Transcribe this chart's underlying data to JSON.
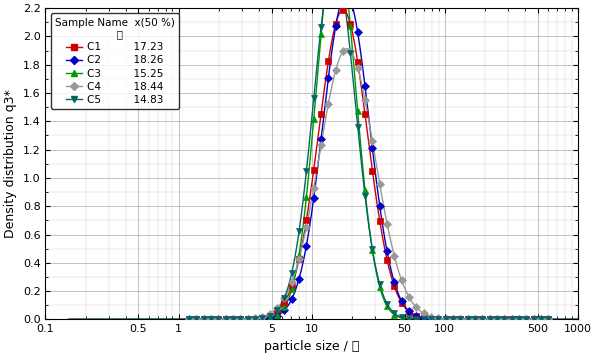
{
  "title": "",
  "xlabel": "particle size / 萑",
  "ylabel": "Density distribution q3*",
  "xlim": [
    0.1,
    1000
  ],
  "ylim": [
    0.0,
    2.2
  ],
  "yticks": [
    0.0,
    0.2,
    0.4,
    0.6,
    0.8,
    1.0,
    1.2,
    1.4,
    1.6,
    1.8,
    2.0,
    2.2
  ],
  "series": [
    {
      "name": "C1",
      "x50": 17.23,
      "color": "#cc0000",
      "marker": "s",
      "mu": 2.845,
      "sigma": 0.42
    },
    {
      "name": "C2",
      "x50": 18.26,
      "color": "#0000cc",
      "marker": "D",
      "mu": 2.9,
      "sigma": 0.4
    },
    {
      "name": "C3",
      "x50": 15.25,
      "color": "#009900",
      "marker": "^",
      "mu": 2.725,
      "sigma": 0.34
    },
    {
      "name": "C4",
      "x50": 18.44,
      "color": "#999999",
      "marker": "D",
      "mu": 2.915,
      "sigma": 0.48
    },
    {
      "name": "C5",
      "x50": 14.83,
      "color": "#006666",
      "marker": "v",
      "mu": 2.695,
      "sigma": 0.365
    }
  ],
  "background_color": "#ffffff"
}
